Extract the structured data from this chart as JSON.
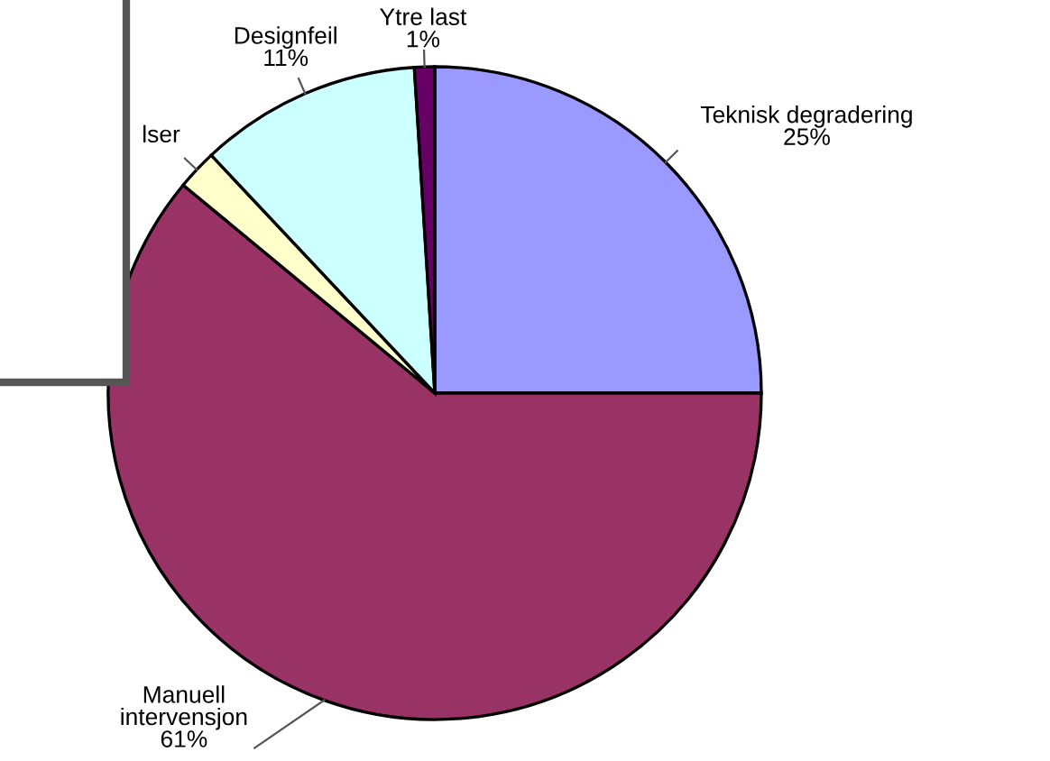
{
  "chart_data": {
    "type": "pie",
    "categories": [
      "Teknisk degradering",
      "Manuell\nintervensjon",
      "lser",
      "Designfeil",
      "Ytre last"
    ],
    "values": [
      25,
      61,
      2,
      11,
      1
    ],
    "colors": [
      "#9999ff",
      "#993366",
      "#ffffcc",
      "#ccffff",
      "#660066"
    ],
    "value_labels": [
      "25%",
      "61%",
      null,
      "11%",
      "1%"
    ],
    "legend": false
  }
}
